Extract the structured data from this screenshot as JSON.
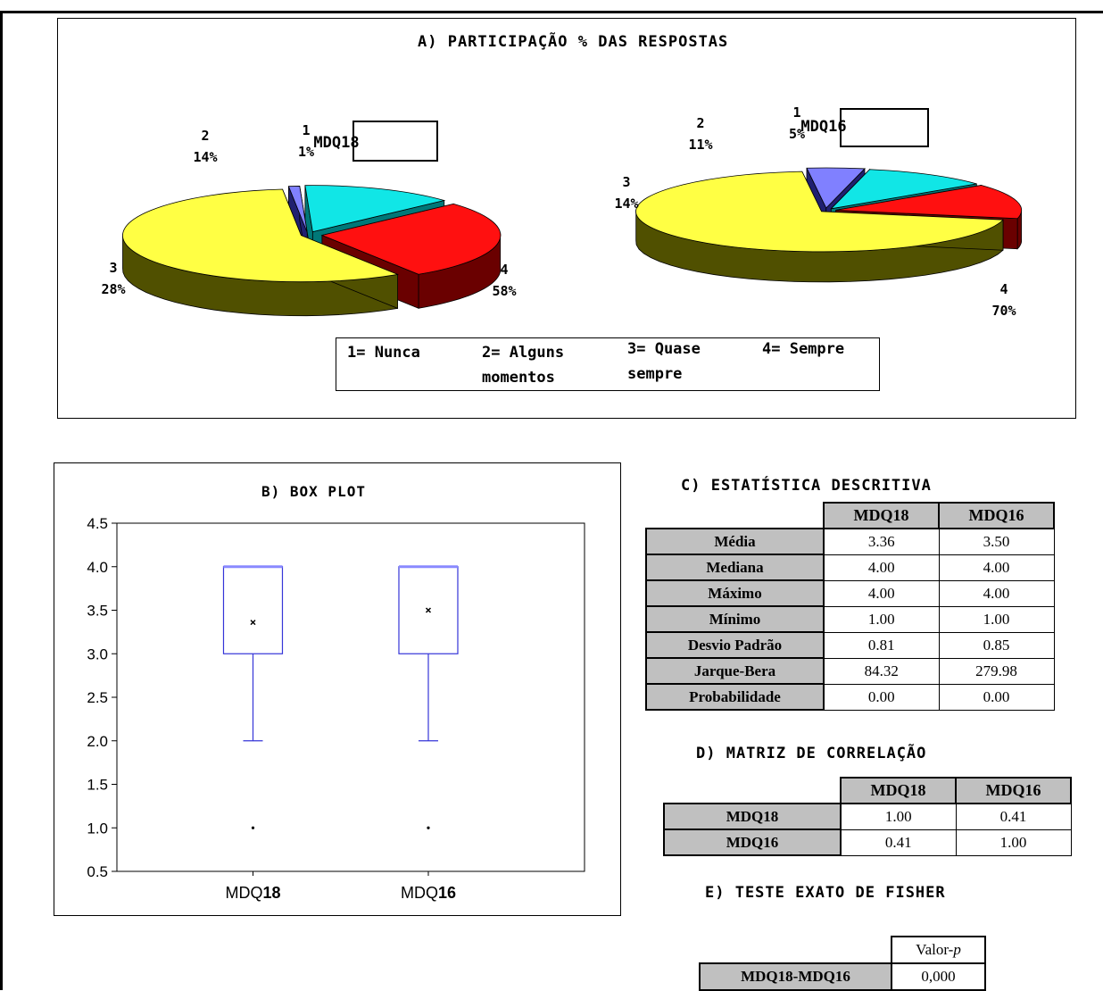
{
  "panel_a": {
    "title": "A) PARTICIPAÇÃO % DAS RESPOSTAS",
    "legend": [
      "1= Nunca",
      "2= Alguns",
      "momentos",
      "3= Quase",
      "sempre",
      "4= Sempre"
    ]
  },
  "panel_b": {
    "title": "B) BOX PLOT"
  },
  "panel_c": {
    "title": "C) ESTATÍSTICA DESCRITIVA",
    "headers": [
      "MDQ18",
      "MDQ16"
    ],
    "rows": [
      {
        "label": "Média",
        "v1": "3.36",
        "v2": "3.50"
      },
      {
        "label": "Mediana",
        "v1": "4.00",
        "v2": "4.00"
      },
      {
        "label": "Máximo",
        "v1": "4.00",
        "v2": "4.00"
      },
      {
        "label": "Mínimo",
        "v1": "1.00",
        "v2": "1.00"
      },
      {
        "label": "Desvio Padrão",
        "v1": "0.81",
        "v2": "0.85"
      },
      {
        "label": "Jarque-Bera",
        "v1": "84.32",
        "v2": "279.98"
      },
      {
        "label": "Probabilidade",
        "v1": "0.00",
        "v2": "0.00"
      }
    ]
  },
  "panel_d": {
    "title": "D) MATRIZ DE CORRELAÇÃO",
    "headers": [
      "MDQ18",
      "MDQ16"
    ],
    "rows": [
      {
        "label": "MDQ18",
        "v1": "1.00",
        "v2": "0.41"
      },
      {
        "label": "MDQ16",
        "v1": "0.41",
        "v2": "1.00"
      }
    ]
  },
  "panel_e": {
    "title": "E) TESTE EXATO DE FISHER",
    "header_prefix": "Valor-",
    "header_italic": "p",
    "row_label": "MDQ18-MDQ16",
    "row_value": "0,000"
  },
  "chart_data": [
    {
      "type": "pie",
      "title": "MDQ18",
      "categories": [
        "1",
        "2",
        "3",
        "4"
      ],
      "values": [
        1,
        14,
        28,
        58
      ],
      "labels": [
        "1%",
        "14%",
        "28%",
        "58%"
      ],
      "colors": [
        "#8080ff",
        "#11e6e6",
        "#ff1010",
        "#ffff44"
      ],
      "dark_colors": [
        "#202070",
        "#007878",
        "#6a0000",
        "#505000"
      ]
    },
    {
      "type": "pie",
      "title": "MDQ16",
      "categories": [
        "1",
        "2",
        "3",
        "4"
      ],
      "values": [
        5,
        11,
        14,
        70
      ],
      "labels": [
        "5%",
        "11%",
        "14%",
        "70%"
      ],
      "colors": [
        "#8080ff",
        "#11e6e6",
        "#ff1010",
        "#ffff44"
      ],
      "dark_colors": [
        "#202070",
        "#007878",
        "#6a0000",
        "#505000"
      ]
    },
    {
      "type": "box",
      "categories": [
        "MDQ18",
        "MDQ16"
      ],
      "tick_labels": [
        [
          "MDQ",
          "18"
        ],
        [
          "MDQ",
          "16"
        ]
      ],
      "ylim": [
        0.5,
        4.5
      ],
      "yticks": [
        "0.5",
        "1.0",
        "1.5",
        "2.0",
        "2.5",
        "3.0",
        "3.5",
        "4.0",
        "4.5"
      ],
      "series": [
        {
          "name": "MDQ18",
          "q1": 3.0,
          "median": 4.0,
          "q3": 4.0,
          "whisker_low": 2.0,
          "whisker_high": 4.0,
          "mean": 3.36,
          "outliers": [
            1.0
          ]
        },
        {
          "name": "MDQ16",
          "q1": 3.0,
          "median": 4.0,
          "q3": 4.0,
          "whisker_low": 2.0,
          "whisker_high": 4.0,
          "mean": 3.5,
          "outliers": [
            1.0
          ]
        }
      ]
    }
  ]
}
